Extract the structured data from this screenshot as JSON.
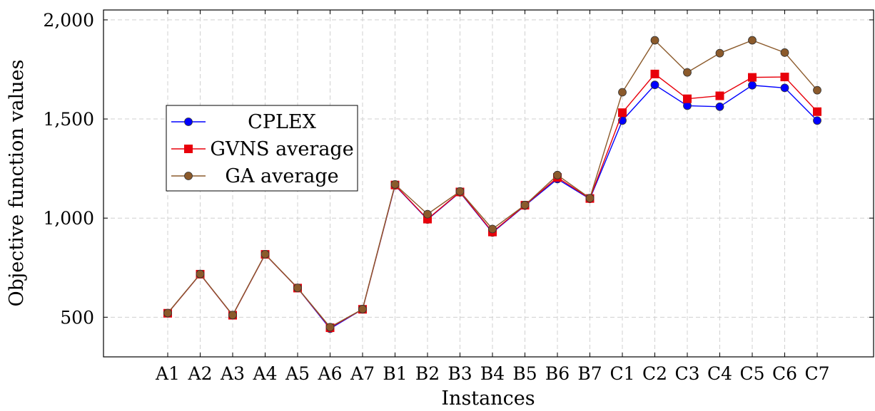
{
  "chart_data": {
    "type": "line",
    "xlabel": "Instances",
    "ylabel": "Objective function values",
    "categories": [
      "A1",
      "A2",
      "A3",
      "A4",
      "A5",
      "A6",
      "A7",
      "B1",
      "B2",
      "B3",
      "B4",
      "B5",
      "B6",
      "B7",
      "C1",
      "C2",
      "C3",
      "C4",
      "C5",
      "C6",
      "C7"
    ],
    "ylim": [
      300,
      2050
    ],
    "yticks": [
      500,
      1000,
      1500,
      2000
    ],
    "ytick_labels": [
      "500",
      "1,000",
      "1,500",
      "2,000"
    ],
    "grid": true,
    "legend_position": "center-left",
    "series": [
      {
        "name": "CPLEX",
        "color": "#0000ff",
        "marker": "circle",
        "values": [
          520,
          717,
          510,
          817,
          647,
          442,
          540,
          1165,
          993,
          1130,
          927,
          1063,
          1197,
          1097,
          1492,
          1672,
          1567,
          1562,
          1670,
          1657,
          1492
        ]
      },
      {
        "name": "GVNS average",
        "color": "#e8000b",
        "marker": "square",
        "values": [
          520,
          717,
          510,
          817,
          647,
          447,
          540,
          1167,
          995,
          1132,
          930,
          1065,
          1205,
          1099,
          1532,
          1727,
          1602,
          1617,
          1710,
          1712,
          1537
        ]
      },
      {
        "name": "GA average",
        "color": "#8b5a2b",
        "marker": "circle",
        "values": [
          521,
          718,
          511,
          818,
          648,
          450,
          541,
          1170,
          1020,
          1135,
          945,
          1066,
          1217,
          1101,
          1635,
          1897,
          1735,
          1832,
          1897,
          1835,
          1645
        ]
      }
    ]
  }
}
